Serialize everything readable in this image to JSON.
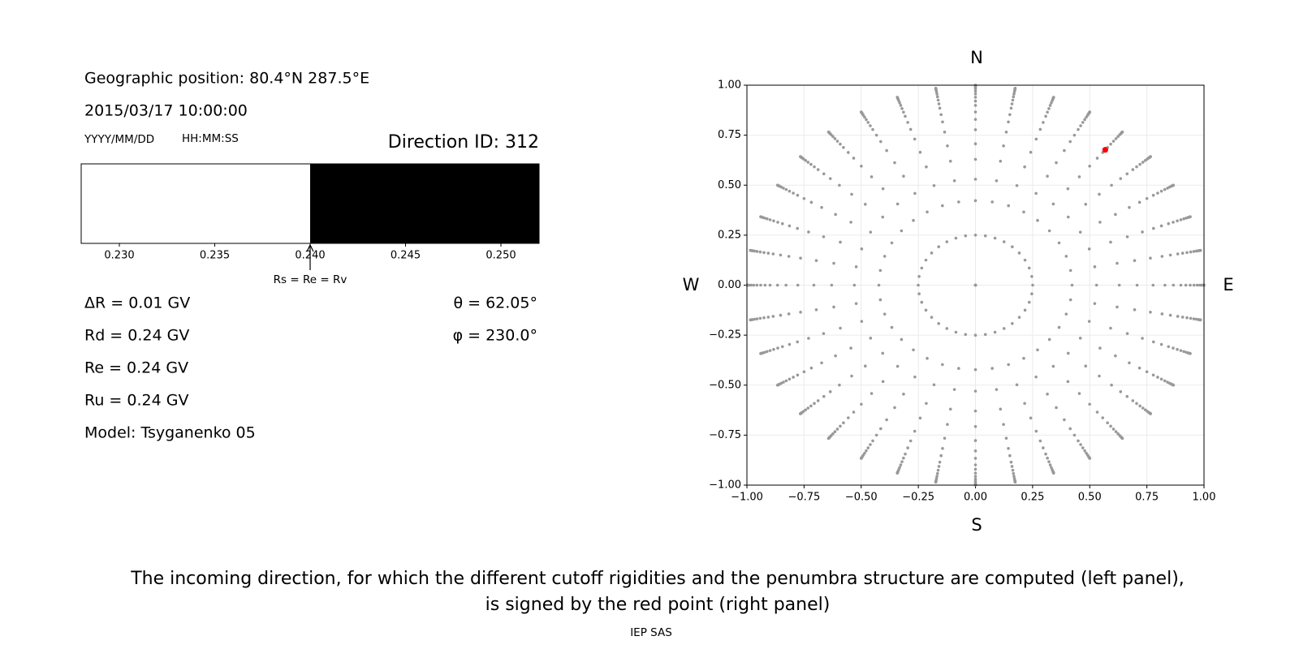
{
  "info": {
    "position": "Geographic position: 80.4°N 287.5°E",
    "datetime": "2015/03/17 10:00:00",
    "date_format": "YYYY/MM/DD",
    "time_format": "HH:MM:SS",
    "direction": "Direction ID: 312",
    "rigidities": [
      "ΔR = 0.01 GV",
      "Rd = 0.24 GV",
      "Re = 0.24 GV",
      "Ru = 0.24 GV"
    ],
    "model": "Model: Tsyganenko 05",
    "angles": [
      "θ = 62.05°",
      "φ = 230.0°"
    ]
  },
  "penumbra": {
    "type": "bar",
    "xlim": [
      0.228,
      0.252
    ],
    "xticks": [
      {
        "value": 0.23,
        "label": "0.230"
      },
      {
        "value": 0.235,
        "label": "0.235"
      },
      {
        "value": 0.24,
        "label": "0.240"
      },
      {
        "value": 0.245,
        "label": "0.245"
      },
      {
        "value": 0.25,
        "label": "0.250"
      }
    ],
    "cutoff": 0.24,
    "annotation": "Rs = Re = Rv",
    "allowed_color": "#ffffff",
    "forbidden_color": "#000000"
  },
  "chart_data": {
    "type": "scatter",
    "projection": "polar",
    "xlim": [
      -1,
      1
    ],
    "ylim": [
      -1,
      1
    ],
    "xticks": [
      {
        "value": -1,
        "label": "−1.00"
      },
      {
        "value": -0.75,
        "label": "−0.75"
      },
      {
        "value": -0.5,
        "label": "−0.50"
      },
      {
        "value": -0.25,
        "label": "−0.25"
      },
      {
        "value": 0,
        "label": "0.00"
      },
      {
        "value": 0.25,
        "label": "0.25"
      },
      {
        "value": 0.5,
        "label": "0.50"
      },
      {
        "value": 0.75,
        "label": "0.75"
      },
      {
        "value": 1,
        "label": "1.00"
      }
    ],
    "yticks": [
      {
        "value": -1,
        "label": "−1.00"
      },
      {
        "value": -0.75,
        "label": "−0.75"
      },
      {
        "value": -0.5,
        "label": "−0.50"
      },
      {
        "value": -0.25,
        "label": "−0.25"
      },
      {
        "value": 0,
        "label": "0.00"
      },
      {
        "value": 0.25,
        "label": "0.25"
      },
      {
        "value": 0.5,
        "label": "0.50"
      },
      {
        "value": 0.75,
        "label": "0.75"
      },
      {
        "value": 1,
        "label": "1.00"
      }
    ],
    "grid": true,
    "directions": {
      "color": "#999999",
      "theta": [
        0,
        14.5,
        25,
        32,
        39,
        45,
        51,
        56,
        60,
        64,
        67,
        70,
        73,
        76,
        79,
        82,
        84,
        86,
        88,
        90
      ],
      "phi": [
        0,
        10,
        20,
        30,
        40,
        50,
        60,
        70,
        80,
        90,
        100,
        110,
        120,
        130,
        140,
        150,
        160,
        170,
        180,
        190,
        200,
        210,
        220,
        230,
        240,
        250,
        260,
        270,
        280,
        290,
        300,
        310,
        320,
        330,
        340,
        350
      ]
    },
    "selected": {
      "theta": 62.05,
      "phi": 230.0,
      "color": "#ff0000"
    },
    "compass": [
      "N",
      "E",
      "S",
      "W"
    ]
  },
  "caption": [
    "The incoming direction, for which the different cutoff rigidities and the penumbra structure are computed (left panel),",
    "is signed by the red point (right panel)"
  ],
  "footer": "IEP SAS"
}
